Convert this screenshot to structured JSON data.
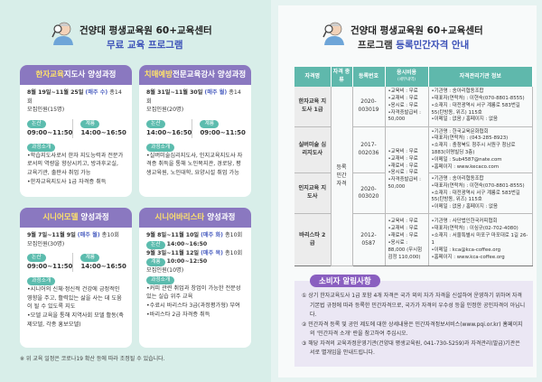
{
  "left": {
    "title": "건양대 평생교육원 60+교육센터",
    "subtitle": "무료 교육 프로그램",
    "cards": [
      {
        "title_hl": "한자교육",
        "title": "지도사 양성과정",
        "schedule": "8월 19일~11월 25일",
        "day": "(매주 수)",
        "count": "총14회",
        "recruit": "모집인원(15명)",
        "sessions": [
          {
            "place": "논산",
            "time": "09:00~11:50"
          },
          {
            "place": "계룡",
            "time": "14:00~16:50"
          }
        ],
        "intro_label": "과정소개",
        "intro": [
          "•학습지도사로서 한자 지도능력과 전문가로서의 역량을 향상시키고, 방과후교실, 교육기관, 출판사 취업 가능",
          "•한자교육지도사 1급 자격증 취득"
        ]
      },
      {
        "title_hl": "치매예방",
        "title": "전문교육강사 양성과정",
        "schedule": "8월 31일~11월 30일",
        "day": "(매주 월)",
        "count": "총14회",
        "recruit": "모집인원(20명)",
        "sessions": [
          {
            "place": "논산",
            "time": "14:00~16:50"
          },
          {
            "place": "계룡",
            "time": "09:00~11:50"
          }
        ],
        "intro_label": "과정소개",
        "intro": [
          "•실버미술심리지도사, 인지교육지도사 자격증 취득을 통해 노인복지관, 경로당, 평생교육원, 노인대학, 요양시설 취업 가능"
        ]
      },
      {
        "title_hl": "시니어모델",
        "title": " 양성과정",
        "schedule": "9월 7일~11월 9일",
        "day": "(매주 월)",
        "count": "총10회",
        "recruit": "모집인원(30명)",
        "sessions": [
          {
            "place": "논산",
            "time": "09:00~11:50"
          },
          {
            "place": "계룡",
            "time": "14:00~16:50"
          }
        ],
        "intro_label": "과정소개",
        "intro": [
          "•시니어의 신체·정신적 건강에 긍정적인 영향을 주고, 활력있는 삶을 사는 데 도움이 될 수 있도록 지도",
          "•모델 교육을 통해 지역사회 모델 활동(축제모델, 각종 홍보모델)"
        ]
      },
      {
        "title_hl": "시니어바리스타",
        "title": " 양성과정",
        "blocks": [
          {
            "schedule": "9월 8일~11월 10일",
            "day": "(매주 화)",
            "count": "총10회",
            "place": "논산",
            "time": "14:00~16:50"
          },
          {
            "schedule": "9월 3일~11월 12일",
            "day": "(매주 목)",
            "count": "총10회",
            "place": "계룡",
            "time": "10:00~12:50"
          }
        ],
        "recruit": "모집인원(10명)",
        "intro_label": "과정소개",
        "intro": [
          "•커피 관련 취업과 창업이 가능한 전문성 있는 실습 위주 교육",
          "•수료시 바리스타 3급(과정평가형) 부여",
          "•바리스타 2급 자격증 취득"
        ]
      }
    ],
    "note": "※ 위 교육 일정은 코로나19 확산 등에 따라 조정될 수 있습니다."
  },
  "right": {
    "title": "건양대 평생교육원 60+교육센터",
    "subtitle_pre": "프로그램 ",
    "subtitle_hl": "등록민간자격 안내",
    "table": {
      "headers": [
        "자격명",
        "자격 종류",
        "등록번호",
        "응시비용",
        "자격관리기관 정보"
      ],
      "cost_sub": "(세부내역)",
      "type": "등록 민간 자격",
      "rows": [
        {
          "name": "한자교육 지도사 1급",
          "no": "2020-003019",
          "cost": [
            "•교육비 : 무료",
            "•교재비 : 무료",
            "•응시료 : 무료",
            "•자격증발급비 : 50,000"
          ],
          "info": [
            "•기관명 : 송아리협동조합",
            "•대표자(연락처) : 이현숙(070-8801-8555)",
            "•소재지 : 대전광역시 서구 계룡로 583번길 55(탄방동, 위즈) 115호",
            "•이메일 : 없음 / 홈페이지 : 없음"
          ]
        },
        {
          "name": "실버미술 심리지도사",
          "no": "2017-002036",
          "info": [
            "•기관명 : 한국교육문화협회",
            "•대표자(연락처) : (043-285-8923)",
            "•소재지 : 충청북도 청주시 서원구 청남로 1883(이명빌딩 3층)",
            "•이메일 : Sub4587@nate.com",
            "•홈페이지 : www.kecaco.com"
          ]
        },
        {
          "name": "인지교육 지도사",
          "no": "2020-003020",
          "info": [
            "•기관명 : 송아리협동조합",
            "•대표자(연락처) : 이현숙(070-8801-8555)",
            "•소재지 : 대전광역시 서구 계룡로 583번길 55(탄방동, 위즈) 115호",
            "•이메일 : 없음 / 홈페이지 : 없음"
          ]
        },
        {
          "name": "바리스타 2급",
          "no": "2012-0587",
          "cost": [
            "•교육비 : 무료",
            "•교재비 : 무료",
            "•재료비 : 무료",
            "•응시료 : 88,000 (무시험검정 110,000)"
          ],
          "info": [
            "•기관명 : 사단법인한국커피협회",
            "•대표자(연락처) : 이심규(02-702-4080)",
            "•소재지 : 서울특별시 마포구 마포대로 1길 26-1",
            "•이메일 : kca@kca-coffee.org",
            "•홈페이지 : www.kca-coffee.org"
          ]
        }
      ],
      "shared_cost": [
        "•교육비 : 무료",
        "•교재비 : 무료",
        "•재료비 : 무료",
        "•응시료 : 무료",
        "•자격증발급비 : 50,000"
      ]
    },
    "notice": {
      "title": "소비자 알림사항",
      "items": [
        "① 상기 한자교육도사 1급 포함 4개 자격은 국가 외의 자가 자격을 신설하여 운영하기 위하여 자격기본법 규정에 따라 등록한 민간자격으로, 국가가 자격의 우수성 등을 인정한 공인자격이 아닙니다.",
        "② 민간자격 등록 및 공인 제도에 대한 상세내용은 민간자격정보서비스(www.pqi.or.kr) 홈페이지의 '민간자격 소개' 란을 참고하여 주십시오.",
        "③ 해당 자격의 교육과정운영기관(건양대 평생교육원, 041-730-5259)과 자격관리(발급)기관은 서로 별개임을 안내드립니다."
      ]
    }
  },
  "colors": {
    "card_header": "#8a78c0",
    "highlight": "#ffe26a",
    "pill": "#5cbcae",
    "table_header": "#5fb8ac",
    "accent_blue": "#4b5fc0"
  }
}
